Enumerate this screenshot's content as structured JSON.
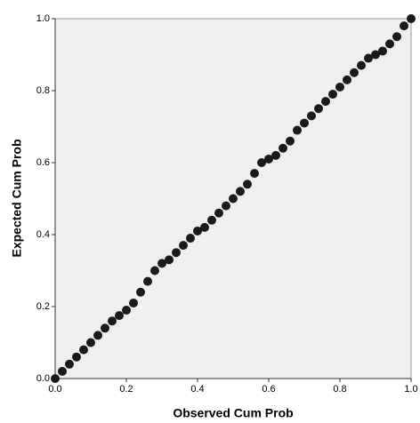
{
  "chart_data": {
    "type": "scatter",
    "x_label": "Observed Cum Prob",
    "y_label": "Expected Cum Prob",
    "color": "#1a1a1a",
    "x": [
      0,
      0.02,
      0.04,
      0.06,
      0.08,
      0.1,
      0.12,
      0.14,
      0.16,
      0.18,
      0.2,
      0.22,
      0.24,
      0.26,
      0.28,
      0.3,
      0.32,
      0.34,
      0.36,
      0.38,
      0.4,
      0.42,
      0.44,
      0.46,
      0.48,
      0.5,
      0.52,
      0.54,
      0.56,
      0.58,
      0.6,
      0.62,
      0.64,
      0.66,
      0.68,
      0.7,
      0.72,
      0.74,
      0.76,
      0.78,
      0.8,
      0.82,
      0.84,
      0.86,
      0.88,
      0.9,
      0.92,
      0.94,
      0.96,
      0.98,
      1
    ],
    "y": [
      0,
      0.02,
      0.04,
      0.06,
      0.08,
      0.1,
      0.12,
      0.14,
      0.16,
      0.175,
      0.19,
      0.21,
      0.24,
      0.27,
      0.3,
      0.32,
      0.33,
      0.35,
      0.37,
      0.39,
      0.41,
      0.42,
      0.44,
      0.46,
      0.48,
      0.5,
      0.52,
      0.54,
      0.57,
      0.6,
      0.61,
      0.62,
      0.64,
      0.66,
      0.69,
      0.71,
      0.73,
      0.75,
      0.77,
      0.79,
      0.81,
      0.83,
      0.85,
      0.87,
      0.89,
      0.9,
      0.91,
      0.93,
      0.95,
      0.98,
      1
    ],
    "xlim": [
      0,
      1
    ],
    "ylim": [
      0,
      1
    ],
    "xticks": [
      {
        "value": 0,
        "label": "0.0"
      },
      {
        "value": 0.2,
        "label": "0.2"
      },
      {
        "value": 0.4,
        "label": "0.4"
      },
      {
        "value": 0.6,
        "label": "0.6"
      },
      {
        "value": 0.8,
        "label": "0.8"
      },
      {
        "value": 1,
        "label": "1.0"
      }
    ],
    "yticks": [
      {
        "value": 0,
        "label": "0.0"
      },
      {
        "value": 0.2,
        "label": "0.2"
      },
      {
        "value": 0.4,
        "label": "0.4"
      },
      {
        "value": 0.6,
        "label": "0.6"
      },
      {
        "value": 0.8,
        "label": "0.8"
      },
      {
        "value": 1,
        "label": "1.0"
      }
    ]
  }
}
